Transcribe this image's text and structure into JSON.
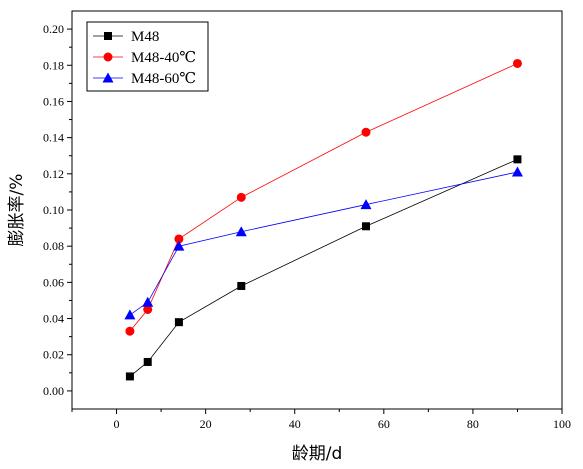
{
  "chart_data": {
    "type": "line",
    "xlabel": "龄期/d",
    "ylabel": "膨胀率/%",
    "xlim": [
      -10,
      100
    ],
    "ylim": [
      -0.01,
      0.21
    ],
    "xticks": [
      0,
      20,
      40,
      60,
      80,
      100
    ],
    "yticks": [
      0.0,
      0.02,
      0.04,
      0.06,
      0.08,
      0.1,
      0.12,
      0.14,
      0.16,
      0.18,
      0.2
    ],
    "grid": false,
    "legend_position": "top-left",
    "x": [
      3,
      7,
      14,
      28,
      56,
      90
    ],
    "series": [
      {
        "name": "M48",
        "values": [
          0.008,
          0.016,
          0.038,
          0.058,
          0.091,
          0.128
        ],
        "color": "#000000",
        "marker": "square"
      },
      {
        "name": "M48-40℃",
        "values": [
          0.033,
          0.045,
          0.084,
          0.107,
          0.143,
          0.181
        ],
        "color": "#ff0000",
        "marker": "circle"
      },
      {
        "name": "M48-60℃",
        "values": [
          0.042,
          0.049,
          0.08,
          0.088,
          0.103,
          0.121
        ],
        "color": "#0000ff",
        "marker": "triangle"
      }
    ]
  }
}
